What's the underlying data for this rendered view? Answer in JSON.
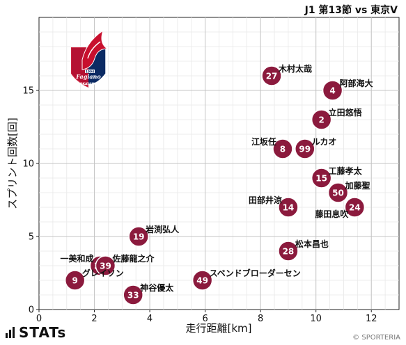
{
  "header": {
    "match_title": "J1 第13節 vs 東京V"
  },
  "footer": {
    "brand": "STATs",
    "credit": "© SPORTERIA"
  },
  "logo": {
    "year": "1994",
    "wordmark": "Fagiano",
    "city": "OKAYAMA"
  },
  "chart_data": {
    "type": "scatter",
    "title": "",
    "xlabel": "走行距離[km]",
    "ylabel": "スプリント回数[回]",
    "xlim": [
      0,
      13
    ],
    "ylim": [
      0,
      20
    ],
    "xticks": [
      0,
      2,
      4,
      6,
      8,
      10,
      12
    ],
    "yticks": [
      0,
      5,
      10,
      15
    ],
    "grid": true,
    "marker_color": "#8b1a3d",
    "points": [
      {
        "number": "27",
        "name": "木村太哉",
        "x": 8.4,
        "y": 16,
        "label_pos": "above-right"
      },
      {
        "number": "4",
        "name": "阿部海大",
        "x": 10.6,
        "y": 15,
        "label_pos": "above-right"
      },
      {
        "number": "2",
        "name": "立田悠悟",
        "x": 10.2,
        "y": 13,
        "label_pos": "above-right"
      },
      {
        "number": "8",
        "name": "江坂任",
        "x": 8.8,
        "y": 11,
        "label_pos": "above-left"
      },
      {
        "number": "99",
        "name": "ルカオ",
        "x": 9.6,
        "y": 11,
        "label_pos": "above-right"
      },
      {
        "number": "15",
        "name": "工藤孝太",
        "x": 10.2,
        "y": 9,
        "label_pos": "above-right"
      },
      {
        "number": "50",
        "name": "加藤聖",
        "x": 10.8,
        "y": 8,
        "label_pos": "above-right"
      },
      {
        "number": "14",
        "name": "田部井涼",
        "x": 9.0,
        "y": 7,
        "label_pos": "above-left"
      },
      {
        "number": "24",
        "name": "藤田息吹",
        "x": 11.4,
        "y": 7,
        "label_pos": "below-left"
      },
      {
        "number": "19",
        "name": "岩渕弘人",
        "x": 3.6,
        "y": 5,
        "label_pos": "above-right"
      },
      {
        "number": "28",
        "name": "松本昌也",
        "x": 9.0,
        "y": 4,
        "label_pos": "above-right"
      },
      {
        "number": "23",
        "name": "一美和成",
        "x": 2.2,
        "y": 3,
        "label_pos": "above-left"
      },
      {
        "number": "39",
        "name": "佐藤龍之介",
        "x": 2.4,
        "y": 3,
        "label_pos": "above-right"
      },
      {
        "number": "9",
        "name": "グレイソン",
        "x": 1.3,
        "y": 2,
        "label_pos": "above-right"
      },
      {
        "number": "49",
        "name": "スベンドブローダーセン",
        "x": 5.9,
        "y": 2,
        "label_pos": "above-right"
      },
      {
        "number": "33",
        "name": "神谷優太",
        "x": 3.4,
        "y": 1,
        "label_pos": "above-right"
      }
    ]
  }
}
